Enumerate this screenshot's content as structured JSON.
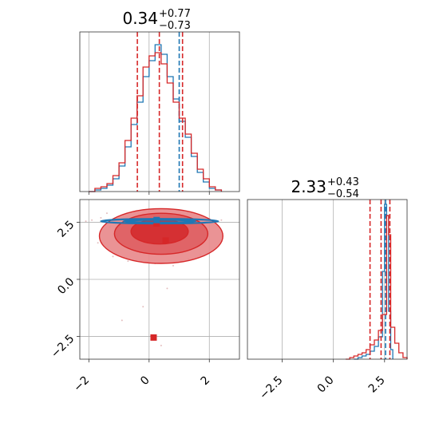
{
  "colors": {
    "model_a": "#1f77b4",
    "model_b": "#d62728",
    "contour_fill_b": "#e8878a",
    "grid": "#b0b0b0"
  },
  "chart_data": [
    {
      "type": "histogram",
      "panel": "top-left",
      "title": {
        "median": "0.34",
        "upper": "+0.77",
        "lower": "−0.73"
      },
      "xlim": [
        -2.3,
        3.0
      ],
      "xticks": [
        -2,
        0,
        2
      ],
      "x_ticklabels_shown": false,
      "grid": true,
      "series": [
        {
          "color": "#1f77b4",
          "bins": [
            [
              -2.0,
              0
            ],
            [
              -1.8,
              0.01
            ],
            [
              -1.6,
              0.02
            ],
            [
              -1.4,
              0.04
            ],
            [
              -1.2,
              0.08
            ],
            [
              -1.0,
              0.16
            ],
            [
              -0.8,
              0.28
            ],
            [
              -0.6,
              0.42
            ],
            [
              -0.4,
              0.56
            ],
            [
              -0.2,
              0.72
            ],
            [
              0.0,
              0.82
            ],
            [
              0.2,
              0.92
            ],
            [
              0.4,
              0.86
            ],
            [
              0.6,
              0.72
            ],
            [
              0.8,
              0.58
            ],
            [
              1.0,
              0.44
            ],
            [
              1.2,
              0.34
            ],
            [
              1.4,
              0.22
            ],
            [
              1.6,
              0.12
            ],
            [
              1.8,
              0.06
            ],
            [
              2.0,
              0.02
            ],
            [
              2.2,
              0.01
            ],
            [
              2.4,
              0
            ]
          ],
          "quantile_lines": [
            1.0
          ]
        },
        {
          "color": "#d62728",
          "bins": [
            [
              -2.0,
              0
            ],
            [
              -1.8,
              0.02
            ],
            [
              -1.6,
              0.03
            ],
            [
              -1.4,
              0.05
            ],
            [
              -1.2,
              0.1
            ],
            [
              -1.0,
              0.18
            ],
            [
              -0.8,
              0.32
            ],
            [
              -0.6,
              0.46
            ],
            [
              -0.4,
              0.6
            ],
            [
              -0.2,
              0.78
            ],
            [
              0.0,
              0.85
            ],
            [
              0.2,
              0.87
            ],
            [
              0.4,
              0.8
            ],
            [
              0.6,
              0.68
            ],
            [
              0.8,
              0.56
            ],
            [
              1.0,
              0.46
            ],
            [
              1.2,
              0.36
            ],
            [
              1.4,
              0.24
            ],
            [
              1.6,
              0.14
            ],
            [
              1.8,
              0.08
            ],
            [
              2.0,
              0.03
            ],
            [
              2.2,
              0.01
            ],
            [
              2.4,
              0
            ]
          ],
          "quantile_lines": [
            -0.39,
            0.34,
            1.11
          ]
        }
      ]
    },
    {
      "type": "contour",
      "panel": "bottom-left",
      "xlim": [
        -2.3,
        3.0
      ],
      "ylim": [
        -3.5,
        3.5
      ],
      "xticks": [
        -2,
        0,
        2
      ],
      "xticklabels": [
        "−2",
        "0",
        "2"
      ],
      "yticks": [
        2.5,
        0.0,
        -2.5
      ],
      "yticklabels": [
        "2.5",
        "0.0",
        "−2.5"
      ],
      "grid": true,
      "series": [
        {
          "color": "#d62728",
          "levels": [
            {
              "cx": 0.4,
              "cy": 1.9,
              "rx": 2.05,
              "ry": 1.2
            },
            {
              "cx": 0.4,
              "cy": 2.0,
              "rx": 1.55,
              "ry": 0.9
            },
            {
              "cx": 0.35,
              "cy": 2.1,
              "rx": 0.95,
              "ry": 0.55
            }
          ],
          "markers": [
            [
              0.55,
              1.7
            ],
            [
              0.25,
              2.45
            ],
            [
              0.15,
              -2.55
            ]
          ]
        },
        {
          "color": "#1f77b4",
          "levels": [
            {
              "cx": 0.35,
              "cy": 2.55,
              "rx": 1.95,
              "ry": 0.1
            },
            {
              "cx": 0.35,
              "cy": 2.55,
              "rx": 1.2,
              "ry": 0.05
            }
          ],
          "markers": [
            [
              0.25,
              2.6
            ]
          ]
        }
      ]
    },
    {
      "type": "histogram",
      "panel": "bottom-right",
      "title": {
        "median": "2.33",
        "upper": "+0.43",
        "lower": "−0.54"
      },
      "xlim": [
        -4.2,
        3.6
      ],
      "xticks": [
        -2.5,
        0.0,
        2.5
      ],
      "xticklabels": [
        "−2.5",
        "0.0",
        "2.5"
      ],
      "grid": true,
      "series": [
        {
          "color": "#1f77b4",
          "bins": [
            [
              1.0,
              0
            ],
            [
              1.2,
              0.01
            ],
            [
              1.4,
              0.02
            ],
            [
              1.6,
              0.03
            ],
            [
              1.8,
              0.05
            ],
            [
              2.0,
              0.08
            ],
            [
              2.2,
              0.14
            ],
            [
              2.4,
              0.55
            ],
            [
              2.5,
              0.97
            ],
            [
              2.6,
              0.9
            ],
            [
              2.7,
              0.3
            ],
            [
              2.8,
              0.06
            ],
            [
              2.9,
              0
            ]
          ],
          "quantile_lines": [
            2.55
          ]
        },
        {
          "color": "#d62728",
          "bins": [
            [
              0.6,
              0
            ],
            [
              0.8,
              0.01
            ],
            [
              1.0,
              0.02
            ],
            [
              1.2,
              0.03
            ],
            [
              1.4,
              0.04
            ],
            [
              1.6,
              0.06
            ],
            [
              1.8,
              0.09
            ],
            [
              2.0,
              0.12
            ],
            [
              2.2,
              0.18
            ],
            [
              2.4,
              0.28
            ],
            [
              2.6,
              0.9
            ],
            [
              2.7,
              0.78
            ],
            [
              2.8,
              0.2
            ],
            [
              3.0,
              0.1
            ],
            [
              3.2,
              0.04
            ],
            [
              3.4,
              0.01
            ],
            [
              3.6,
              0
            ]
          ],
          "quantile_lines": [
            1.79,
            2.33,
            2.76
          ]
        }
      ]
    }
  ]
}
